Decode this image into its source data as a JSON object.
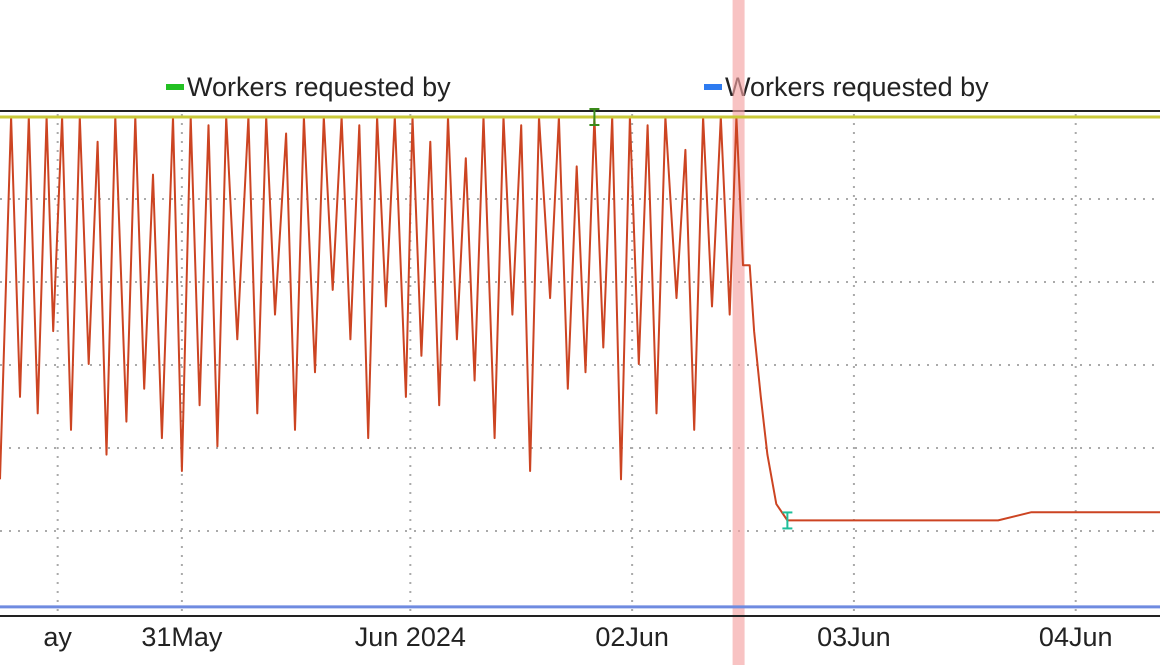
{
  "chart_data": {
    "type": "line",
    "legend": [
      {
        "label": "Workers requested by",
        "color": "#22c022"
      },
      {
        "label": "Workers requested by",
        "color": "#2e7bf0"
      }
    ],
    "x_ticks": [
      "ay",
      "31May",
      "Jun 2024",
      "02Jun",
      "03Jun",
      "04Jun"
    ],
    "x_tick_days": [
      -0.04,
      0.52,
      1.55,
      2.55,
      3.55,
      4.55
    ],
    "x_range": [
      -0.3,
      4.93
    ],
    "y_range": [
      0,
      6
    ],
    "grid": true,
    "highlight_band_day": 3.03,
    "series": [
      {
        "color": "#cc4422",
        "x": [
          -0.3,
          -0.25,
          -0.21,
          -0.17,
          -0.13,
          -0.09,
          -0.06,
          -0.02,
          0.02,
          0.06,
          0.1,
          0.14,
          0.18,
          0.22,
          0.27,
          0.31,
          0.35,
          0.39,
          0.43,
          0.48,
          0.52,
          0.56,
          0.6,
          0.64,
          0.68,
          0.72,
          0.77,
          0.82,
          0.86,
          0.9,
          0.94,
          0.99,
          1.03,
          1.07,
          1.12,
          1.16,
          1.2,
          1.24,
          1.28,
          1.32,
          1.36,
          1.4,
          1.44,
          1.48,
          1.53,
          1.56,
          1.6,
          1.64,
          1.68,
          1.72,
          1.76,
          1.8,
          1.84,
          1.88,
          1.93,
          1.97,
          2.01,
          2.05,
          2.09,
          2.13,
          2.18,
          2.22,
          2.26,
          2.3,
          2.34,
          2.38,
          2.42,
          2.46,
          2.5,
          2.54,
          2.58,
          2.62,
          2.66,
          2.7,
          2.75,
          2.79,
          2.83,
          2.87,
          2.91,
          2.95,
          2.99,
          3.02,
          3.05,
          3.08,
          3.1,
          3.13,
          3.16,
          3.2,
          3.25,
          3.3,
          3.4,
          3.5,
          3.62,
          3.75,
          3.8,
          3.9,
          4.0,
          4.1,
          4.2,
          4.35,
          4.45,
          4.55,
          4.7,
          4.93
        ],
        "y": [
          1.6,
          6.0,
          2.6,
          6.0,
          2.4,
          6.0,
          3.4,
          6.0,
          2.2,
          6.0,
          3.0,
          5.7,
          1.9,
          6.0,
          2.3,
          6.0,
          2.7,
          5.3,
          2.1,
          6.0,
          1.7,
          6.0,
          2.5,
          5.9,
          2.0,
          6.0,
          3.3,
          6.0,
          2.4,
          6.0,
          3.6,
          5.8,
          2.2,
          6.0,
          2.9,
          6.0,
          3.9,
          6.0,
          3.3,
          5.9,
          2.1,
          6.0,
          3.7,
          6.0,
          2.6,
          6.0,
          3.1,
          5.7,
          2.5,
          6.0,
          3.3,
          5.5,
          2.8,
          6.0,
          2.1,
          6.0,
          3.6,
          5.9,
          1.7,
          6.0,
          3.8,
          6.0,
          2.7,
          5.4,
          2.9,
          6.0,
          3.2,
          6.0,
          1.6,
          6.0,
          3.0,
          5.9,
          2.4,
          6.0,
          3.8,
          5.6,
          2.2,
          6.0,
          3.7,
          6.0,
          3.6,
          6.0,
          4.2,
          4.2,
          3.4,
          2.6,
          1.9,
          1.3,
          1.1,
          1.1,
          1.1,
          1.1,
          1.1,
          1.1,
          1.1,
          1.1,
          1.1,
          1.1,
          1.1,
          1.2,
          1.2,
          1.2,
          1.2,
          1.2
        ]
      },
      {
        "color": "#c9c93a",
        "x": [
          -0.3,
          4.93
        ],
        "y": [
          6.0,
          6.0
        ]
      },
      {
        "color": "#6f8be0",
        "x": [
          -0.3,
          4.93
        ],
        "y": [
          0.05,
          0.05
        ]
      }
    ],
    "markers": [
      {
        "x": 2.38,
        "y": 6.0,
        "color": "#3a8a1a"
      },
      {
        "x": 3.25,
        "y": 1.1,
        "color": "#1fbf9a"
      }
    ]
  }
}
